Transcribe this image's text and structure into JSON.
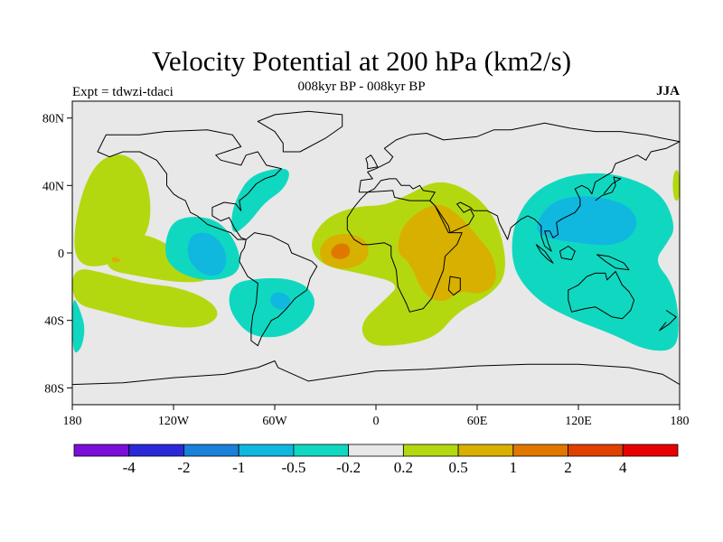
{
  "title": "Velocity Potential at 200 hPa (km2/s)",
  "subtitle": "008kyr BP - 008kyr BP",
  "left_label": "Expt = tdwzi-tdaci",
  "right_label": "JJA",
  "map": {
    "lon_range": [
      -180,
      180
    ],
    "lat_range": [
      -90,
      90
    ],
    "x_ticks": [
      {
        "lon": -180,
        "label": "180"
      },
      {
        "lon": -120,
        "label": "120W"
      },
      {
        "lon": -60,
        "label": "60W"
      },
      {
        "lon": 0,
        "label": "0"
      },
      {
        "lon": 60,
        "label": "60E"
      },
      {
        "lon": 120,
        "label": "120E"
      },
      {
        "lon": 180,
        "label": "180"
      }
    ],
    "y_ticks": [
      {
        "lat": 80,
        "label": "80N"
      },
      {
        "lat": 40,
        "label": "40N"
      },
      {
        "lat": 0,
        "label": "0"
      },
      {
        "lat": -40,
        "label": "40S"
      },
      {
        "lat": -80,
        "label": "80S"
      }
    ],
    "background_color": "#e8e8e8"
  },
  "colorbar": {
    "colors": [
      "#7a10d8",
      "#2a28d8",
      "#1a80d8",
      "#10b8e0",
      "#10d8c0",
      "#e8e8e8",
      "#b4d810",
      "#d8b000",
      "#e07800",
      "#e04000",
      "#e80000"
    ],
    "labels": [
      "-4",
      "-2",
      "-1",
      "-0.5",
      "-0.2",
      "0.2",
      "0.5",
      "1",
      "2",
      "4"
    ]
  },
  "chart_data": {
    "type": "heatmap",
    "title": "Velocity Potential at 200 hPa (km2/s)",
    "subtitle": "008kyr BP - 008kyr BP",
    "experiment": "Expt = tdwzi-tdaci",
    "season": "JJA",
    "x_ticks": [
      "180",
      "120W",
      "60W",
      "0",
      "60E",
      "120E",
      "180"
    ],
    "y_ticks": [
      "80N",
      "40N",
      "0",
      "40S",
      "80S"
    ],
    "levels": [
      -4,
      -2,
      -1,
      -0.5,
      -0.2,
      0.2,
      0.5,
      1,
      2,
      4
    ],
    "regions": [
      {
        "name": "central-pacific-positive",
        "level": "0.2 to 0.5",
        "lon": [
          -180,
          -120
        ],
        "lat": [
          -35,
          60
        ]
      },
      {
        "name": "east-pacific-negative",
        "level": "-0.5 to -0.2",
        "lon": [
          -125,
          -80
        ],
        "lat": [
          -20,
          20
        ]
      },
      {
        "name": "east-pacific-core",
        "level": "-1 to -0.5",
        "lon": [
          -112,
          -90
        ],
        "lat": [
          -15,
          12
        ]
      },
      {
        "name": "south-pacific-positive",
        "level": "0.2 to 0.5",
        "lon": [
          -175,
          -90
        ],
        "lat": [
          -45,
          -20
        ]
      },
      {
        "name": "south-america-negative",
        "level": "-0.5 to -0.2",
        "lon": [
          -85,
          -35
        ],
        "lat": [
          -50,
          -15
        ]
      },
      {
        "name": "south-america-core",
        "level": "-1 to -0.5",
        "lon": [
          -62,
          -48
        ],
        "lat": [
          -35,
          -25
        ]
      },
      {
        "name": "north-atlantic-negative",
        "level": "-0.5 to -0.2",
        "lon": [
          -85,
          -50
        ],
        "lat": [
          10,
          50
        ]
      },
      {
        "name": "africa-positive",
        "level": "0.2 to 0.5",
        "lon": [
          -35,
          80
        ],
        "lat": [
          -55,
          45
        ]
      },
      {
        "name": "africa-west-core",
        "level": "0.5 to 1",
        "lon": [
          -30,
          -5
        ],
        "lat": [
          -10,
          10
        ]
      },
      {
        "name": "africa-west-max",
        "level": "1 to 2",
        "lon": [
          -25,
          -15
        ],
        "lat": [
          -5,
          5
        ]
      },
      {
        "name": "east-africa-core",
        "level": "0.5 to 1",
        "lon": [
          15,
          75
        ],
        "lat": [
          -25,
          25
        ]
      },
      {
        "name": "west-pacific-negative",
        "level": "-0.5 to -0.2",
        "lon": [
          80,
          180
        ],
        "lat": [
          -60,
          50
        ]
      },
      {
        "name": "west-pacific-core",
        "level": "-1 to -0.5",
        "lon": [
          95,
          155
        ],
        "lat": [
          0,
          30
        ]
      }
    ]
  }
}
